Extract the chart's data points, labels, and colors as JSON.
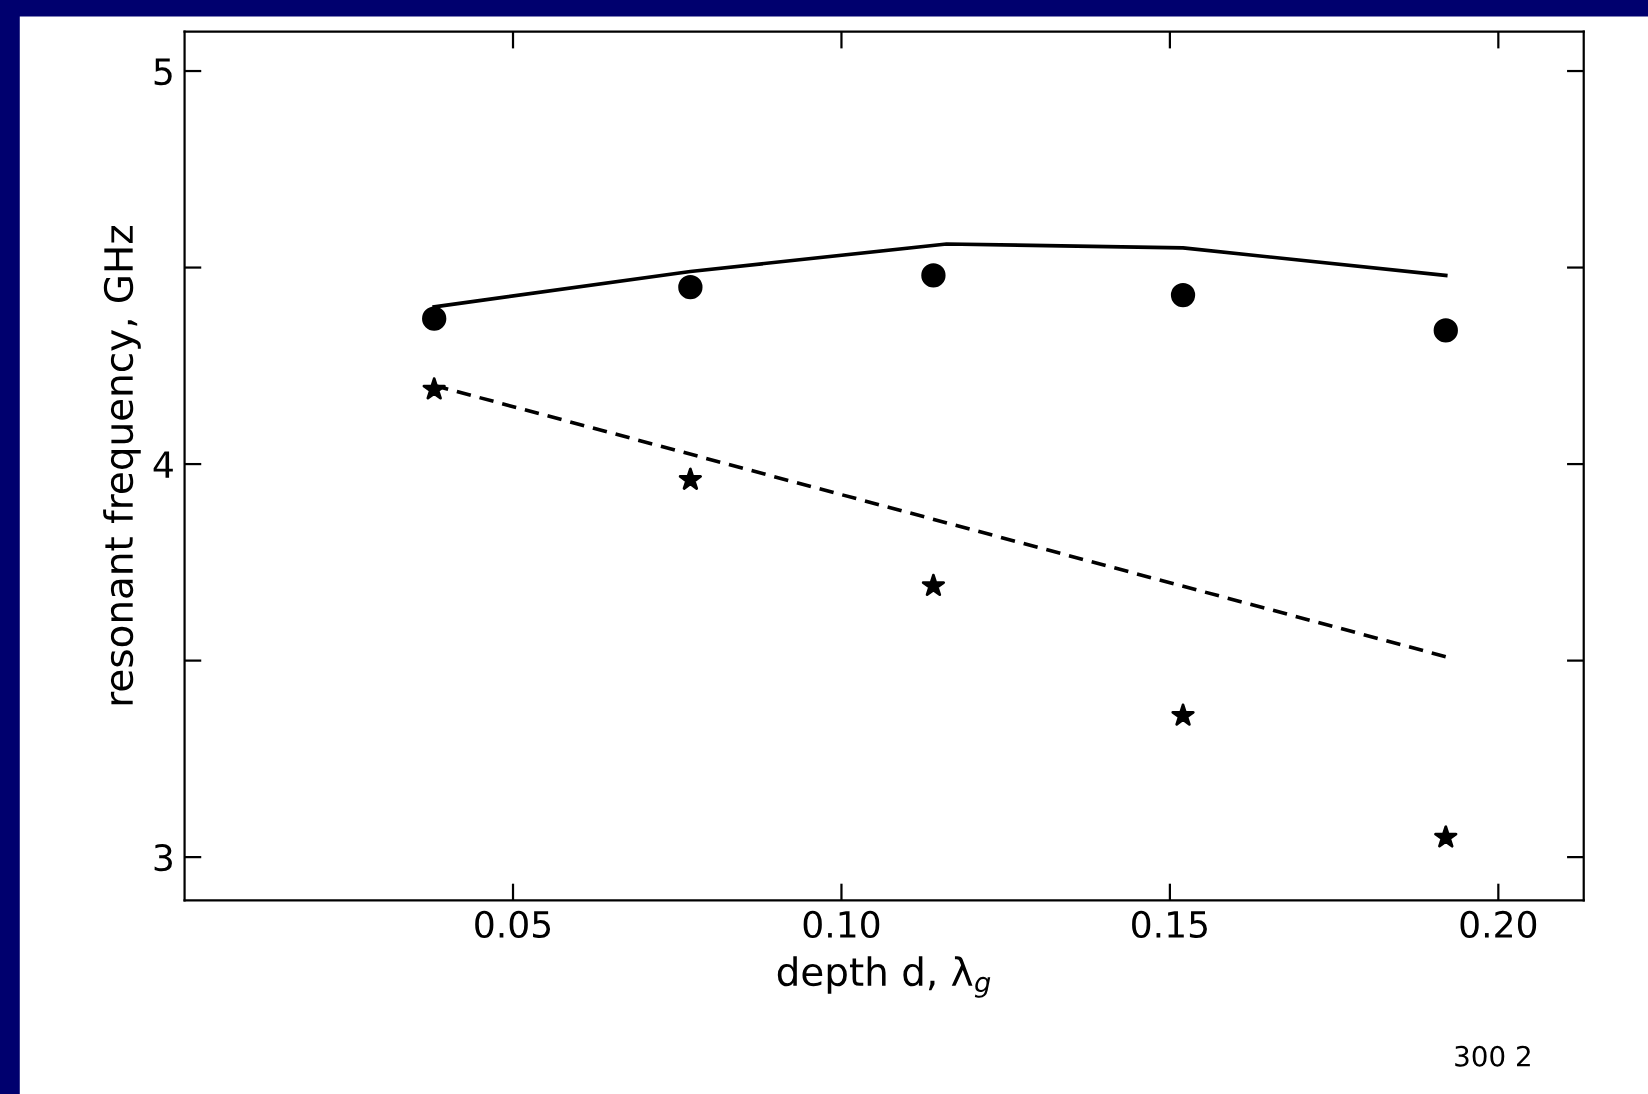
{
  "chart_data": {
    "type": "line",
    "xlabel": "depth d, λ$_{g}$",
    "ylabel": "resonant frequency, GHz",
    "xlim": [
      0,
      0.213
    ],
    "ylim": [
      2.89,
      5.1
    ],
    "xticks": [
      0.05,
      {
        "value": 0.1,
        "label": "0.10"
      },
      0.15,
      {
        "value": 0.2,
        "label": "0.20"
      }
    ],
    "yticks": [
      3,
      {
        "value": 3.5,
        "label": null
      },
      4,
      {
        "value": 4.5,
        "label": null
      },
      5
    ],
    "grid": false,
    "legend": false,
    "series": [
      {
        "color": "#000000",
        "line_style": "solid",
        "marker": "none",
        "x": [
          0.038,
          0.077,
          0.116,
          0.152,
          0.192
        ],
        "values": [
          4.4,
          4.49,
          4.56,
          4.55,
          4.48
        ]
      },
      {
        "color": "#000000",
        "line_style": "dashed",
        "marker": "none",
        "x": [
          0.038,
          0.192
        ],
        "values": [
          4.2,
          3.51
        ]
      },
      {
        "type": "scatter",
        "color": "#000000",
        "marker": "circle",
        "x": [
          0.038,
          0.077,
          0.114,
          0.152,
          0.192
        ],
        "values": [
          4.37,
          4.45,
          4.48,
          4.43,
          4.34
        ]
      },
      {
        "type": "scatter",
        "color": "#000000",
        "marker": "star",
        "x": [
          0.038,
          0.077,
          0.114,
          0.152,
          0.192
        ],
        "values": [
          4.19,
          3.96,
          3.69,
          3.36,
          3.05
        ]
      }
    ],
    "annotations": [
      "300 2"
    ]
  }
}
